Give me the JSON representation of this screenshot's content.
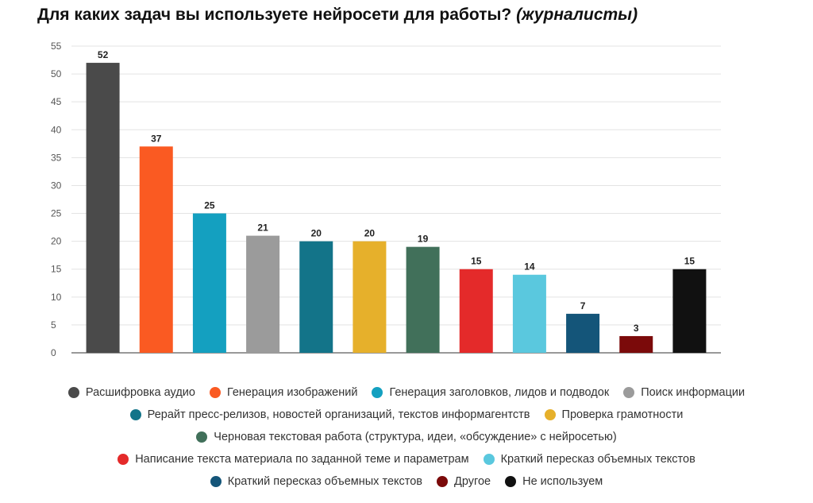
{
  "chart": {
    "title": "Для каких задач вы используете нейросети для работы?",
    "subtitle": "(журналисты)"
  },
  "chart_data": {
    "type": "bar",
    "title": "Для каких задач вы используете нейросети для работы? (журналисты)",
    "categories": [
      "Расшифровка аудио",
      "Генерация изображений",
      "Генерация заголовков, лидов и подводок",
      "Поиск информации",
      "Рерайт пресс-релизов, новостей организаций, текстов информагентств",
      "Проверка грамотности",
      "Черновая текстовая работа (структура, идеи, «обсуждение» с нейросетью)",
      "Написание текста материала по заданной теме и параметрам",
      "Краткий пересказ объемных текстов",
      "Краткий пересказ объемных текстов",
      "Другое",
      "Не используем"
    ],
    "values": [
      52,
      37,
      25,
      21,
      20,
      20,
      19,
      15,
      14,
      7,
      3,
      15
    ],
    "colors": [
      "#4a4a4a",
      "#fa5a22",
      "#14a0c0",
      "#9b9b9b",
      "#137489",
      "#e6b02b",
      "#41705a",
      "#e42a2a",
      "#5ac8de",
      "#145579",
      "#7b0a0a",
      "#111111"
    ],
    "yticks": [
      0,
      5,
      10,
      15,
      20,
      25,
      30,
      35,
      40,
      45,
      50,
      55
    ],
    "ylim": [
      0,
      55
    ],
    "grid": true,
    "legend": "bottom",
    "xlabel": "",
    "ylabel": ""
  },
  "legend_rows": [
    [
      0,
      1,
      2,
      3
    ],
    [
      4,
      5
    ],
    [
      6
    ],
    [
      7,
      8
    ],
    [
      9,
      10,
      11
    ]
  ]
}
